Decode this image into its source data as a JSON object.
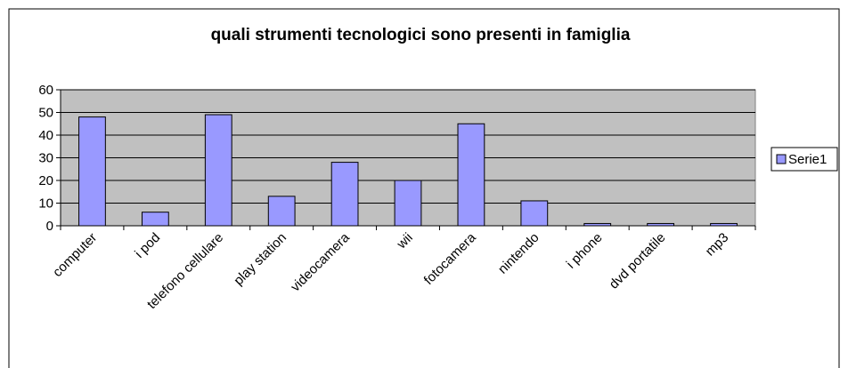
{
  "chart_data": {
    "type": "bar",
    "title": "quali strumenti  tecnologici sono presenti in famiglia",
    "categories": [
      "computer",
      "i pod",
      "telefono cellulare",
      "play station",
      "videocamera",
      "wii",
      "fotocamera",
      "nintendo",
      "i phone",
      "dvd portatile",
      "mp3"
    ],
    "series": [
      {
        "name": "Serie1",
        "color": "#9999ff",
        "values": [
          48,
          6,
          49,
          13,
          28,
          20,
          45,
          11,
          1,
          1,
          1
        ]
      }
    ],
    "ylim": [
      0,
      60
    ],
    "yticks": [
      0,
      10,
      20,
      30,
      40,
      50,
      60
    ],
    "grid": true,
    "legend": "right"
  }
}
